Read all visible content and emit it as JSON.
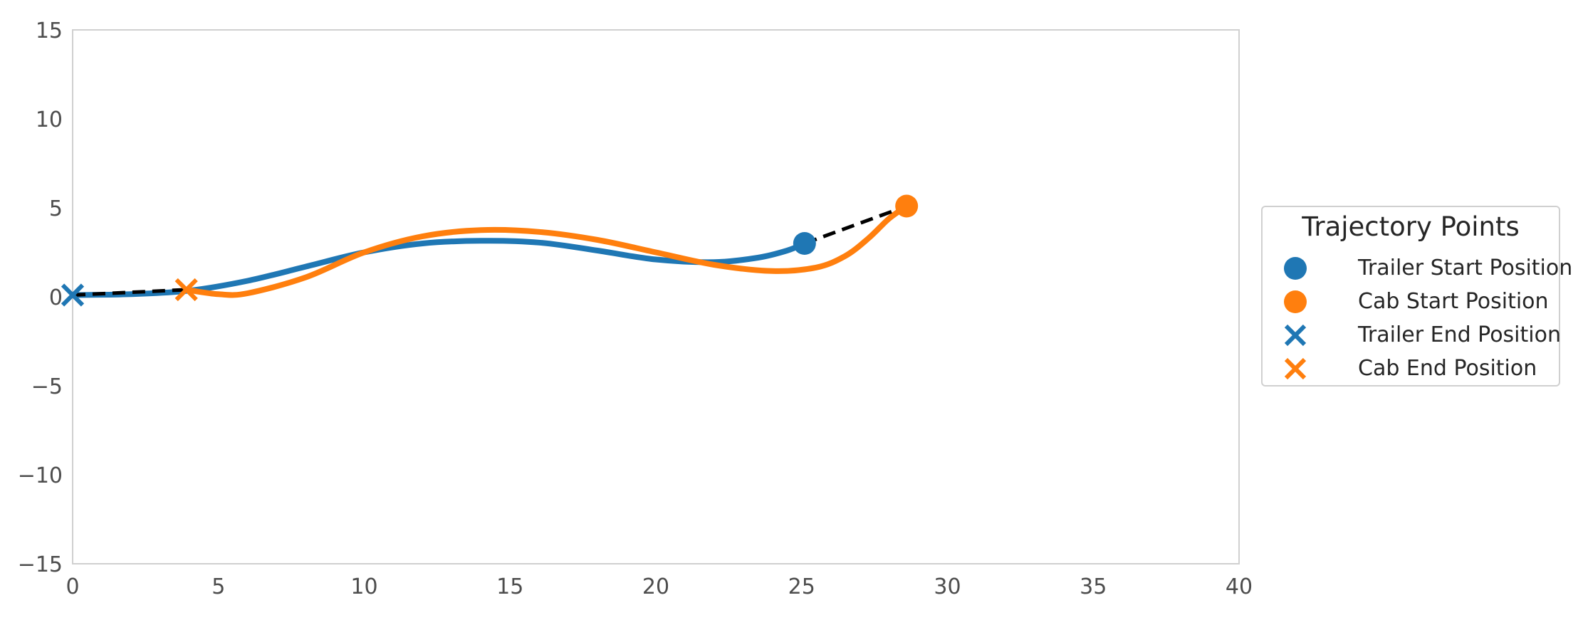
{
  "chart_data": {
    "type": "line",
    "title": "",
    "xlabel": "",
    "ylabel": "",
    "xlim": [
      0,
      40
    ],
    "ylim": [
      -15,
      15
    ],
    "xticks": [
      0,
      5,
      10,
      15,
      20,
      25,
      30,
      35,
      40
    ],
    "yticks": [
      -15,
      -10,
      -5,
      0,
      5,
      10,
      15
    ],
    "xtick_labels": [
      "0",
      "5",
      "10",
      "15",
      "20",
      "25",
      "30",
      "35",
      "40"
    ],
    "ytick_labels": [
      "−15",
      "−10",
      "−5",
      "0",
      "5",
      "10",
      "15"
    ],
    "grid": false,
    "legend_placement": "right, outside plot",
    "legend_title": "Trajectory Points",
    "colors": {
      "trailer": "#1f77b4",
      "cab": "#ff7f0e",
      "link": "#000000"
    },
    "series": [
      {
        "key": "trailer",
        "x": [
          0,
          2,
          4,
          6,
          8,
          10,
          12,
          14,
          16,
          18,
          20,
          22,
          23.5,
          24.5,
          25.1
        ],
        "y": [
          0.1,
          0.15,
          0.35,
          0.9,
          1.7,
          2.5,
          3.0,
          3.15,
          3.05,
          2.6,
          2.1,
          1.95,
          2.2,
          2.6,
          3.0
        ]
      },
      {
        "key": "cab",
        "x": [
          3.9,
          5,
          6,
          8,
          10,
          12,
          14,
          16,
          18,
          20,
          22,
          24,
          25.5,
          26.5,
          27.3,
          28,
          28.6
        ],
        "y": [
          0.4,
          0.15,
          0.2,
          1.1,
          2.5,
          3.4,
          3.75,
          3.65,
          3.2,
          2.5,
          1.8,
          1.45,
          1.65,
          2.3,
          3.3,
          4.4,
          5.1
        ]
      }
    ],
    "links": [
      {
        "from": [
          25.1,
          3.0
        ],
        "to": [
          28.6,
          5.1
        ]
      },
      {
        "from": [
          0,
          0.1
        ],
        "to": [
          3.9,
          0.4
        ]
      }
    ],
    "markers": [
      {
        "label": "Trailer Start Position",
        "shape": "circle",
        "color_key": "trailer",
        "x": 25.1,
        "y": 3.0
      },
      {
        "label": "Cab Start Position",
        "shape": "circle",
        "color_key": "cab",
        "x": 28.6,
        "y": 5.1
      },
      {
        "label": "Trailer End Position",
        "shape": "x",
        "color_key": "trailer",
        "x": 0,
        "y": 0.1
      },
      {
        "label": "Cab End Position",
        "shape": "x",
        "color_key": "cab",
        "x": 3.9,
        "y": 0.4
      }
    ]
  }
}
